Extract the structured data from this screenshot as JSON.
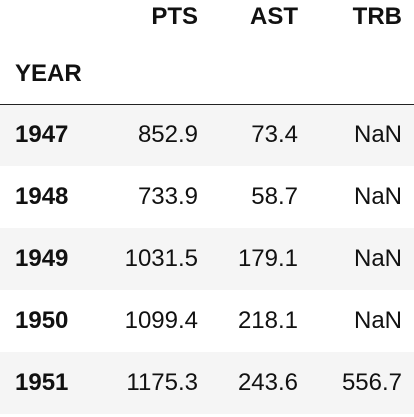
{
  "table": {
    "columns": [
      "PTS",
      "AST",
      "TRB"
    ],
    "index_name": "YEAR",
    "rows": [
      {
        "index": "1947",
        "values": [
          "852.9",
          "73.4",
          "NaN"
        ]
      },
      {
        "index": "1948",
        "values": [
          "733.9",
          "58.7",
          "NaN"
        ]
      },
      {
        "index": "1949",
        "values": [
          "1031.5",
          "179.1",
          "NaN"
        ]
      },
      {
        "index": "1950",
        "values": [
          "1099.4",
          "218.1",
          "NaN"
        ]
      },
      {
        "index": "1951",
        "values": [
          "1175.3",
          "243.6",
          "556.7"
        ]
      }
    ]
  },
  "colors": {
    "text": "#111111",
    "striped_row": "#f5f5f5",
    "header_rule": "#222222"
  }
}
